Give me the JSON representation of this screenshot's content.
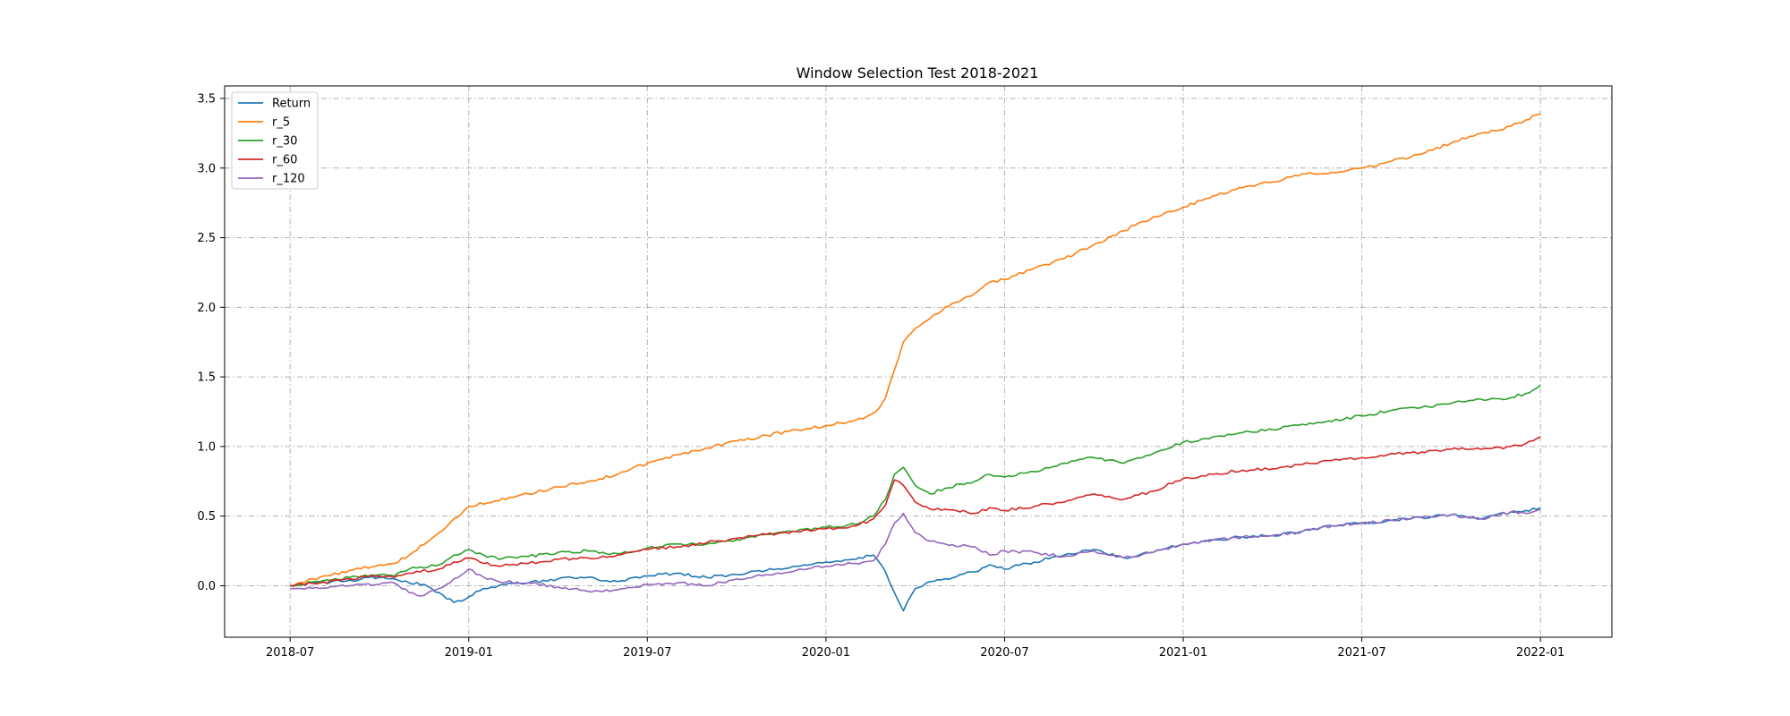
{
  "chart_data": {
    "type": "line",
    "title": "Window Selection Test 2018-2021",
    "xlabel": "",
    "ylabel": "",
    "x_ticks": [
      "2018-07",
      "2019-01",
      "2019-07",
      "2020-01",
      "2020-07",
      "2021-01",
      "2021-07",
      "2022-01"
    ],
    "x_tick_values": [
      0,
      6,
      12,
      18,
      24,
      30,
      36,
      42
    ],
    "xlim": [
      -2.2,
      44.4
    ],
    "y_ticks": [
      "0.0",
      "0.5",
      "1.0",
      "1.5",
      "2.0",
      "2.5",
      "3.0",
      "3.5"
    ],
    "y_tick_values": [
      0.0,
      0.5,
      1.0,
      1.5,
      2.0,
      2.5,
      3.0,
      3.5
    ],
    "ylim": [
      -0.37,
      3.59
    ],
    "grid": true,
    "legend_position": "upper-left",
    "series": [
      {
        "name": "Return",
        "color": "#1f77b4",
        "x": [
          0,
          1,
          2,
          3,
          3.5,
          4,
          4.5,
          5,
          5.5,
          6,
          6.5,
          7,
          8,
          9,
          10,
          11,
          12,
          13,
          14,
          15,
          16,
          17,
          18,
          19,
          19.6,
          20,
          20.3,
          20.6,
          21,
          21.5,
          22,
          23,
          23.5,
          24,
          25,
          26,
          27,
          28,
          29,
          30,
          31,
          32,
          33,
          34,
          35,
          36,
          37,
          38,
          39,
          40,
          41,
          41.5,
          42
        ],
        "values": [
          0.0,
          0.02,
          0.04,
          0.06,
          0.05,
          0.02,
          0.01,
          -0.05,
          -0.12,
          -0.08,
          -0.02,
          0.0,
          0.02,
          0.05,
          0.06,
          0.03,
          0.07,
          0.09,
          0.06,
          0.08,
          0.11,
          0.14,
          0.17,
          0.19,
          0.22,
          0.1,
          -0.05,
          -0.18,
          -0.02,
          0.03,
          0.05,
          0.1,
          0.15,
          0.12,
          0.17,
          0.22,
          0.26,
          0.2,
          0.24,
          0.3,
          0.33,
          0.35,
          0.36,
          0.39,
          0.43,
          0.45,
          0.47,
          0.49,
          0.51,
          0.48,
          0.53,
          0.54,
          0.56
        ]
      },
      {
        "name": "r_5",
        "color": "#ff7f0e",
        "x": [
          0,
          1,
          2,
          3,
          3.5,
          4,
          5,
          5.5,
          6,
          7,
          8,
          9,
          10,
          11,
          12,
          13,
          14,
          15,
          16,
          17,
          18,
          19,
          19.5,
          19.8,
          20,
          20.3,
          20.6,
          21,
          21.5,
          22,
          23,
          23.5,
          24,
          25,
          26,
          27,
          28,
          29,
          30,
          31,
          32,
          33,
          34,
          35,
          36,
          37,
          38,
          39,
          40,
          41,
          42
        ],
        "values": [
          0.0,
          0.06,
          0.11,
          0.15,
          0.16,
          0.22,
          0.38,
          0.48,
          0.57,
          0.61,
          0.66,
          0.71,
          0.75,
          0.8,
          0.88,
          0.94,
          0.99,
          1.04,
          1.08,
          1.12,
          1.15,
          1.19,
          1.23,
          1.28,
          1.35,
          1.55,
          1.75,
          1.85,
          1.92,
          2.0,
          2.1,
          2.18,
          2.2,
          2.28,
          2.35,
          2.45,
          2.55,
          2.65,
          2.72,
          2.8,
          2.86,
          2.9,
          2.96,
          2.97,
          3.0,
          3.05,
          3.1,
          3.18,
          3.25,
          3.3,
          3.39
        ]
      },
      {
        "name": "r_30",
        "color": "#2ca02c",
        "x": [
          0,
          1,
          2,
          3,
          3.5,
          4,
          5,
          5.5,
          6,
          6.5,
          7,
          8,
          9,
          10,
          11,
          12,
          13,
          14,
          15,
          16,
          17,
          18,
          19,
          19.6,
          20,
          20.3,
          20.6,
          21,
          21.5,
          22,
          23,
          23.5,
          24,
          25,
          26,
          27,
          28,
          29,
          30,
          31,
          32,
          33,
          34,
          35,
          36,
          37,
          38,
          39,
          40,
          41,
          41.5,
          42
        ],
        "values": [
          0.0,
          0.03,
          0.06,
          0.08,
          0.07,
          0.12,
          0.15,
          0.22,
          0.26,
          0.22,
          0.19,
          0.21,
          0.24,
          0.25,
          0.23,
          0.27,
          0.3,
          0.3,
          0.33,
          0.37,
          0.39,
          0.42,
          0.44,
          0.5,
          0.62,
          0.8,
          0.85,
          0.72,
          0.66,
          0.7,
          0.75,
          0.8,
          0.78,
          0.82,
          0.88,
          0.92,
          0.88,
          0.95,
          1.03,
          1.07,
          1.1,
          1.12,
          1.16,
          1.18,
          1.22,
          1.26,
          1.28,
          1.31,
          1.34,
          1.35,
          1.38,
          1.44
        ]
      },
      {
        "name": "r_60",
        "color": "#d62728",
        "x": [
          0,
          1,
          2,
          3,
          3.5,
          4,
          5,
          5.5,
          6,
          6.5,
          7,
          8,
          9,
          10,
          11,
          12,
          13,
          14,
          15,
          16,
          17,
          18,
          19,
          19.6,
          20,
          20.3,
          20.6,
          21,
          21.5,
          22,
          23,
          23.5,
          24,
          25,
          26,
          27,
          28,
          29,
          30,
          31,
          32,
          33,
          34,
          35,
          36,
          37,
          38,
          39,
          40,
          41,
          41.5,
          42
        ],
        "values": [
          0.0,
          0.02,
          0.05,
          0.07,
          0.06,
          0.09,
          0.12,
          0.17,
          0.2,
          0.16,
          0.14,
          0.16,
          0.19,
          0.2,
          0.22,
          0.26,
          0.28,
          0.31,
          0.34,
          0.37,
          0.39,
          0.41,
          0.43,
          0.48,
          0.58,
          0.76,
          0.72,
          0.6,
          0.55,
          0.55,
          0.52,
          0.56,
          0.54,
          0.57,
          0.6,
          0.66,
          0.62,
          0.68,
          0.77,
          0.8,
          0.83,
          0.84,
          0.87,
          0.9,
          0.92,
          0.95,
          0.96,
          0.98,
          0.98,
          1.0,
          1.02,
          1.07
        ]
      },
      {
        "name": "r_120",
        "color": "#9467bd",
        "x": [
          0,
          1,
          2,
          3,
          3.5,
          4,
          4.5,
          5,
          5.5,
          6,
          6.5,
          7,
          8,
          9,
          10,
          11,
          12,
          13,
          14,
          15,
          16,
          17,
          18,
          19,
          19.6,
          20,
          20.3,
          20.6,
          21,
          21.5,
          22,
          23,
          23.5,
          24,
          25,
          26,
          27,
          28,
          29,
          30,
          31,
          32,
          33,
          34,
          35,
          36,
          37,
          38,
          39,
          40,
          41,
          41.5,
          42
        ],
        "values": [
          -0.02,
          -0.02,
          0.0,
          0.01,
          0.02,
          -0.05,
          -0.07,
          -0.02,
          0.05,
          0.12,
          0.06,
          0.03,
          0.02,
          -0.01,
          -0.04,
          -0.03,
          0.01,
          0.02,
          0.0,
          0.05,
          0.08,
          0.11,
          0.14,
          0.16,
          0.18,
          0.3,
          0.45,
          0.52,
          0.38,
          0.32,
          0.3,
          0.28,
          0.22,
          0.25,
          0.24,
          0.21,
          0.25,
          0.2,
          0.24,
          0.3,
          0.33,
          0.35,
          0.36,
          0.39,
          0.43,
          0.45,
          0.47,
          0.49,
          0.51,
          0.48,
          0.53,
          0.52,
          0.55
        ]
      }
    ]
  }
}
